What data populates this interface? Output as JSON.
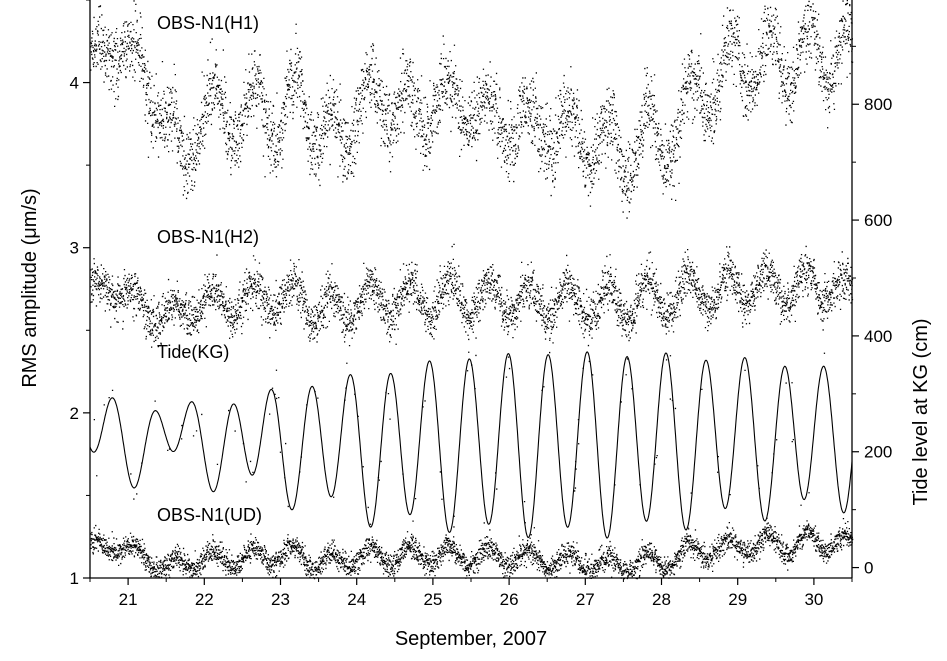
{
  "chart_data": {
    "type": "scatter",
    "xlabel": "September, 2007",
    "ylabel_left": "RMS amplitude (μm/s)",
    "ylabel_right": "Tide level at KG (cm)",
    "x_ticks": [
      "21",
      "22",
      "23",
      "24",
      "25",
      "26",
      "27",
      "28",
      "29",
      "30"
    ],
    "y_left_ticks": [
      "1",
      "2",
      "3",
      "4"
    ],
    "y_right_ticks": [
      "0",
      "200",
      "400",
      "600",
      "800"
    ],
    "xlim": [
      20.5,
      30.5
    ],
    "ylim_left": [
      1.0,
      4.5
    ],
    "ylim_right": [
      -18,
      980
    ],
    "grid": false,
    "series": [
      {
        "name": "OBS-N1(H1)",
        "kind": "scatter",
        "axis": "left",
        "x": [
          20.5,
          20.75,
          21.0,
          21.25,
          21.5,
          21.75,
          22.0,
          22.25,
          22.5,
          22.75,
          23.0,
          23.25,
          23.5,
          23.75,
          24.0,
          24.25,
          24.5,
          24.75,
          25.0,
          25.25,
          25.5,
          25.75,
          26.0,
          26.25,
          26.5,
          26.75,
          27.0,
          27.25,
          27.5,
          27.75,
          28.0,
          28.25,
          28.5,
          28.75,
          29.0,
          29.25,
          29.5,
          29.75,
          30.0,
          30.25,
          30.5
        ],
        "y": [
          4.15,
          4.25,
          4.2,
          4.0,
          3.75,
          3.55,
          3.8,
          3.85,
          3.75,
          3.9,
          3.75,
          3.95,
          3.7,
          3.6,
          3.95,
          3.8,
          4.0,
          3.65,
          4.05,
          3.7,
          4.05,
          3.6,
          3.95,
          3.55,
          3.9,
          3.55,
          3.8,
          3.5,
          3.7,
          3.55,
          3.75,
          3.65,
          4.1,
          3.85,
          4.3,
          3.95,
          4.3,
          4.0,
          4.35,
          4.05,
          4.25
        ],
        "amplitude": [
          0.1,
          0.1,
          0.1,
          0.1,
          0.12,
          0.12,
          0.15,
          0.15,
          0.18,
          0.18,
          0.2,
          0.2,
          0.2,
          0.2,
          0.22,
          0.22,
          0.24,
          0.24,
          0.25,
          0.25,
          0.26,
          0.26,
          0.27,
          0.27,
          0.27,
          0.27,
          0.27,
          0.27,
          0.26,
          0.26,
          0.24,
          0.24,
          0.2,
          0.2,
          0.2,
          0.2,
          0.18,
          0.18,
          0.16,
          0.16,
          0.16
        ],
        "spread": 0.11,
        "n_points": 4200
      },
      {
        "name": "OBS-N1(H2)",
        "kind": "scatter",
        "axis": "left",
        "x": [
          20.5,
          20.75,
          21.0,
          21.25,
          21.5,
          21.75,
          22.0,
          22.25,
          22.5,
          22.75,
          23.0,
          23.25,
          23.5,
          23.75,
          24.0,
          24.25,
          24.5,
          24.75,
          25.0,
          25.25,
          25.5,
          25.75,
          26.0,
          26.25,
          26.5,
          26.75,
          27.0,
          27.25,
          27.5,
          27.75,
          28.0,
          28.25,
          28.5,
          28.75,
          29.0,
          29.25,
          29.5,
          29.75,
          30.0,
          30.25,
          30.5
        ],
        "y": [
          2.72,
          2.78,
          2.72,
          2.62,
          2.58,
          2.62,
          2.68,
          2.66,
          2.68,
          2.7,
          2.7,
          2.72,
          2.62,
          2.62,
          2.7,
          2.68,
          2.72,
          2.66,
          2.72,
          2.68,
          2.72,
          2.66,
          2.72,
          2.64,
          2.7,
          2.64,
          2.7,
          2.64,
          2.68,
          2.68,
          2.72,
          2.68,
          2.78,
          2.7,
          2.8,
          2.72,
          2.8,
          2.74,
          2.8,
          2.74,
          2.72
        ],
        "amplitude": [
          0.05,
          0.05,
          0.06,
          0.06,
          0.07,
          0.07,
          0.08,
          0.08,
          0.09,
          0.09,
          0.1,
          0.1,
          0.11,
          0.11,
          0.12,
          0.12,
          0.12,
          0.12,
          0.13,
          0.13,
          0.13,
          0.13,
          0.13,
          0.13,
          0.13,
          0.13,
          0.12,
          0.12,
          0.12,
          0.12,
          0.12,
          0.12,
          0.11,
          0.11,
          0.11,
          0.11,
          0.1,
          0.1,
          0.1,
          0.1,
          0.1
        ],
        "spread": 0.065,
        "n_points": 4200
      },
      {
        "name": "OBS-N1(UD)",
        "kind": "scatter",
        "axis": "left",
        "x": [
          20.5,
          20.75,
          21.0,
          21.25,
          21.5,
          21.75,
          22.0,
          22.25,
          22.5,
          22.75,
          23.0,
          23.25,
          23.5,
          23.75,
          24.0,
          24.25,
          24.5,
          24.75,
          25.0,
          25.25,
          25.5,
          25.75,
          26.0,
          26.25,
          26.5,
          26.75,
          27.0,
          27.25,
          27.5,
          27.75,
          28.0,
          28.25,
          28.5,
          28.75,
          29.0,
          29.25,
          29.5,
          29.75,
          30.0,
          30.25,
          30.5
        ],
        "y": [
          1.2,
          1.2,
          1.18,
          1.12,
          1.06,
          1.1,
          1.12,
          1.12,
          1.12,
          1.14,
          1.14,
          1.14,
          1.1,
          1.1,
          1.14,
          1.12,
          1.15,
          1.12,
          1.16,
          1.12,
          1.16,
          1.1,
          1.15,
          1.1,
          1.14,
          1.08,
          1.13,
          1.06,
          1.1,
          1.08,
          1.12,
          1.12,
          1.2,
          1.15,
          1.22,
          1.18,
          1.24,
          1.18,
          1.25,
          1.2,
          1.22
        ],
        "amplitude": [
          0.03,
          0.03,
          0.04,
          0.04,
          0.05,
          0.05,
          0.05,
          0.05,
          0.06,
          0.06,
          0.06,
          0.06,
          0.06,
          0.06,
          0.07,
          0.07,
          0.07,
          0.07,
          0.07,
          0.07,
          0.07,
          0.07,
          0.07,
          0.07,
          0.07,
          0.07,
          0.07,
          0.07,
          0.07,
          0.07,
          0.07,
          0.07,
          0.06,
          0.06,
          0.06,
          0.06,
          0.06,
          0.06,
          0.06,
          0.06,
          0.06
        ],
        "spread": 0.035,
        "n_points": 4200
      },
      {
        "name": "Tide(KG)",
        "kind": "line",
        "axis": "right",
        "period_days": 0.5175,
        "phase_day": 20.3,
        "x": [
          20.5,
          21.0,
          21.5,
          22.0,
          22.5,
          23.0,
          23.5,
          24.0,
          24.5,
          25.0,
          25.5,
          26.0,
          26.5,
          27.0,
          27.5,
          28.0,
          28.5,
          29.0,
          29.5,
          30.0,
          30.5
        ],
        "mean": [
          225,
          225,
          225,
          220,
          215,
          215,
          215,
          210,
          210,
          215,
          215,
          215,
          215,
          215,
          215,
          220,
          222,
          225,
          225,
          225,
          225
        ],
        "amplitude": [
          60,
          55,
          50,
          60,
          75,
          90,
          105,
          120,
          130,
          140,
          148,
          152,
          155,
          155,
          152,
          148,
          140,
          135,
          128,
          120,
          115
        ],
        "diurnal_amp": [
          35,
          35,
          30,
          25,
          25,
          22,
          20,
          18,
          15,
          12,
          10,
          10,
          10,
          10,
          12,
          12,
          15,
          15,
          15,
          15,
          15
        ],
        "n_points": 1200,
        "n_stray_dots": 130
      }
    ]
  }
}
